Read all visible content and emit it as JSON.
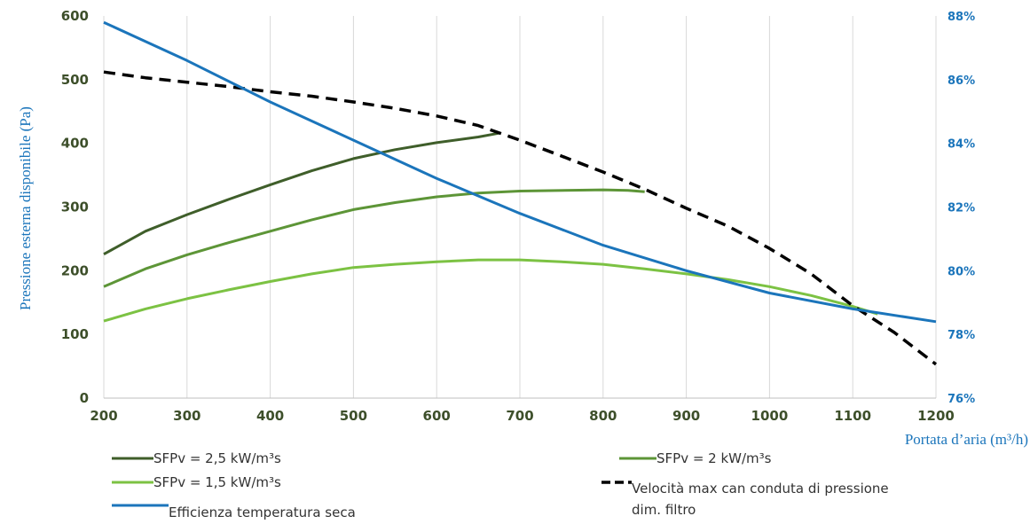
{
  "chart_data": {
    "type": "line",
    "xlabel": "Portata d’aria (m³/h)",
    "ylabel": "Pressione esterna disponibile (Pa)",
    "x_ticks": [
      200,
      300,
      400,
      500,
      600,
      700,
      800,
      900,
      1000,
      1100,
      1200
    ],
    "y_ticks": [
      0,
      100,
      200,
      300,
      400,
      500,
      600
    ],
    "y2_ticks": [
      "76%",
      "78%",
      "80%",
      "82%",
      "84%",
      "86%",
      "88%"
    ],
    "xlim": [
      200,
      1200
    ],
    "ylim": [
      0,
      600
    ],
    "y2lim": [
      76,
      88
    ],
    "grid": "vertical",
    "legend_position": "bottom",
    "series": [
      {
        "name": "SFPv = 2,5 kW/m³s",
        "color": "#3f5e2a",
        "dash": "solid",
        "axis": "left",
        "points": [
          [
            200,
            226
          ],
          [
            250,
            262
          ],
          [
            300,
            288
          ],
          [
            350,
            312
          ],
          [
            400,
            335
          ],
          [
            450,
            357
          ],
          [
            500,
            376
          ],
          [
            550,
            390
          ],
          [
            600,
            401
          ],
          [
            650,
            410
          ],
          [
            675,
            416
          ]
        ]
      },
      {
        "name": "SFPv = 2 kW/m³s",
        "color": "#5d9537",
        "dash": "solid",
        "axis": "left",
        "points": [
          [
            200,
            175
          ],
          [
            250,
            203
          ],
          [
            300,
            225
          ],
          [
            350,
            244
          ],
          [
            400,
            262
          ],
          [
            450,
            280
          ],
          [
            500,
            296
          ],
          [
            550,
            307
          ],
          [
            600,
            316
          ],
          [
            650,
            322
          ],
          [
            700,
            325
          ],
          [
            800,
            327
          ],
          [
            830,
            326
          ],
          [
            850,
            324
          ]
        ]
      },
      {
        "name": "SFPv = 1,5 kW/m³s",
        "color": "#7cc243",
        "dash": "solid",
        "axis": "left",
        "points": [
          [
            200,
            121
          ],
          [
            250,
            140
          ],
          [
            300,
            156
          ],
          [
            350,
            170
          ],
          [
            400,
            183
          ],
          [
            450,
            195
          ],
          [
            500,
            205
          ],
          [
            550,
            210
          ],
          [
            600,
            214
          ],
          [
            650,
            217
          ],
          [
            700,
            217
          ],
          [
            750,
            214
          ],
          [
            800,
            210
          ],
          [
            850,
            203
          ],
          [
            900,
            195
          ],
          [
            950,
            186
          ],
          [
            1000,
            175
          ],
          [
            1050,
            161
          ],
          [
            1100,
            144
          ],
          [
            1130,
            132
          ]
        ]
      },
      {
        "name": "Velocità max can conduta di pressione dim. filtro",
        "color": "#000000",
        "dash": "dashed",
        "axis": "left",
        "points": [
          [
            200,
            512
          ],
          [
            250,
            503
          ],
          [
            300,
            496
          ],
          [
            350,
            489
          ],
          [
            400,
            481
          ],
          [
            450,
            474
          ],
          [
            500,
            465
          ],
          [
            550,
            455
          ],
          [
            600,
            443
          ],
          [
            650,
            428
          ],
          [
            700,
            405
          ],
          [
            750,
            380
          ],
          [
            800,
            355
          ],
          [
            850,
            328
          ],
          [
            900,
            298
          ],
          [
            950,
            270
          ],
          [
            1000,
            235
          ],
          [
            1050,
            195
          ],
          [
            1100,
            145
          ],
          [
            1150,
            103
          ],
          [
            1200,
            53
          ]
        ]
      },
      {
        "name": "Efficienza temperatura seca",
        "color": "#1b75bb",
        "dash": "solid",
        "axis": "right",
        "points_pct": [
          [
            200,
            87.8
          ],
          [
            300,
            86.6
          ],
          [
            400,
            85.3
          ],
          [
            500,
            84.1
          ],
          [
            600,
            82.9
          ],
          [
            700,
            81.8
          ],
          [
            800,
            80.8
          ],
          [
            900,
            80.0
          ],
          [
            1000,
            79.3
          ],
          [
            1100,
            78.8
          ],
          [
            1200,
            78.4
          ]
        ]
      }
    ]
  }
}
